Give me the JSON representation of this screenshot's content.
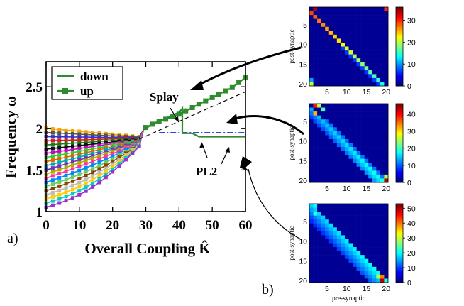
{
  "panel_a_label": "a)",
  "panel_b_label": "b)",
  "chart_data": [
    {
      "type": "line",
      "panel": "a)",
      "xlabel": "Overall Coupling K̂",
      "ylabel": "Frequency ω",
      "xlim": [
        0,
        60
      ],
      "ylim": [
        1,
        2.8
      ],
      "xticks": [
        0,
        10,
        20,
        30,
        40,
        50,
        60
      ],
      "yticks": [
        1,
        1.5,
        2,
        2.5
      ],
      "grid": false,
      "legend": {
        "placement": "top-left",
        "entries": [
          {
            "label": "down",
            "color": "#2e8b2e",
            "marker": "none"
          },
          {
            "label": "up",
            "color": "#2e8b2e",
            "marker": "square"
          }
        ]
      },
      "annotations": [
        "Splay",
        "PL2"
      ],
      "series": [
        {
          "name": "up",
          "color": "#2e8b2e",
          "x": [
            30,
            32,
            34,
            36,
            38,
            40,
            42,
            44,
            46,
            48,
            50,
            52,
            54,
            56,
            58,
            60
          ],
          "y": [
            2.01,
            2.05,
            2.08,
            2.11,
            2.14,
            2.17,
            2.21,
            2.25,
            2.29,
            2.33,
            2.37,
            2.41,
            2.45,
            2.49,
            2.55,
            2.61
          ]
        },
        {
          "name": "down",
          "color": "#2e8b2e",
          "x": [
            60,
            56,
            52,
            50,
            48,
            46,
            44,
            42,
            41,
            41,
            40,
            38,
            36,
            34,
            32,
            30
          ],
          "y": [
            1.9,
            1.9,
            1.9,
            1.9,
            1.9,
            1.9,
            1.94,
            1.94,
            1.94,
            2.24,
            2.19,
            2.16,
            2.12,
            2.09,
            2.05,
            2.0
          ]
        }
      ],
      "reference_lines": [
        {
          "style": "dashed",
          "color": "#000000",
          "x": [
            28,
            60
          ],
          "y": [
            1.87,
            2.44
          ]
        },
        {
          "style": "dash-dot",
          "color": "#3344dd",
          "x": [
            34,
            60
          ],
          "y": [
            1.95,
            1.95
          ]
        }
      ],
      "fan_ensemble": {
        "description": "20 oscillator frequency curves, K from 0 to 29",
        "start_range": [
          1.05,
          2.0
        ],
        "end_range_at_K28": [
          1.78,
          1.9
        ],
        "colors": [
          "#f5a400",
          "#555555",
          "#3333cc",
          "#cc2222",
          "#1a7a1a",
          "#111111",
          "#cc00cc",
          "#33cc33",
          "#dd6600",
          "#00aaaa",
          "#7733bb",
          "#aaaa00",
          "#ff3399",
          "#0088ff",
          "#66cc66",
          "#884400",
          "#bbbbbb",
          "#ffcc00",
          "#00cccc",
          "#9933cc"
        ]
      }
    },
    {
      "type": "heatmap",
      "panel": "b) top",
      "ylabel": "post-synaptic",
      "xlabel": "",
      "xticks": [
        5,
        10,
        15,
        20
      ],
      "yticks": [
        5,
        10,
        15,
        20
      ],
      "colorbar_ticks": [
        0,
        10,
        20,
        30
      ],
      "colorbar_max": 36,
      "pattern": "splay"
    },
    {
      "type": "heatmap",
      "panel": "b) middle",
      "ylabel": "post-synaptic",
      "xlabel": "",
      "xticks": [
        5,
        10,
        15,
        20
      ],
      "yticks": [
        5,
        10,
        15,
        20
      ],
      "colorbar_ticks": [
        0,
        10,
        20,
        30,
        40
      ],
      "colorbar_max": 46,
      "pattern": "pl2"
    },
    {
      "type": "heatmap",
      "panel": "b) bottom",
      "ylabel": "post-synaptic",
      "xlabel": "pre-synaptic",
      "xticks": [
        5,
        10,
        15,
        20
      ],
      "yticks": [
        5,
        10,
        15,
        20
      ],
      "colorbar_ticks": [
        0,
        10,
        20,
        30,
        40,
        50
      ],
      "colorbar_max": 53,
      "pattern": "down"
    }
  ]
}
